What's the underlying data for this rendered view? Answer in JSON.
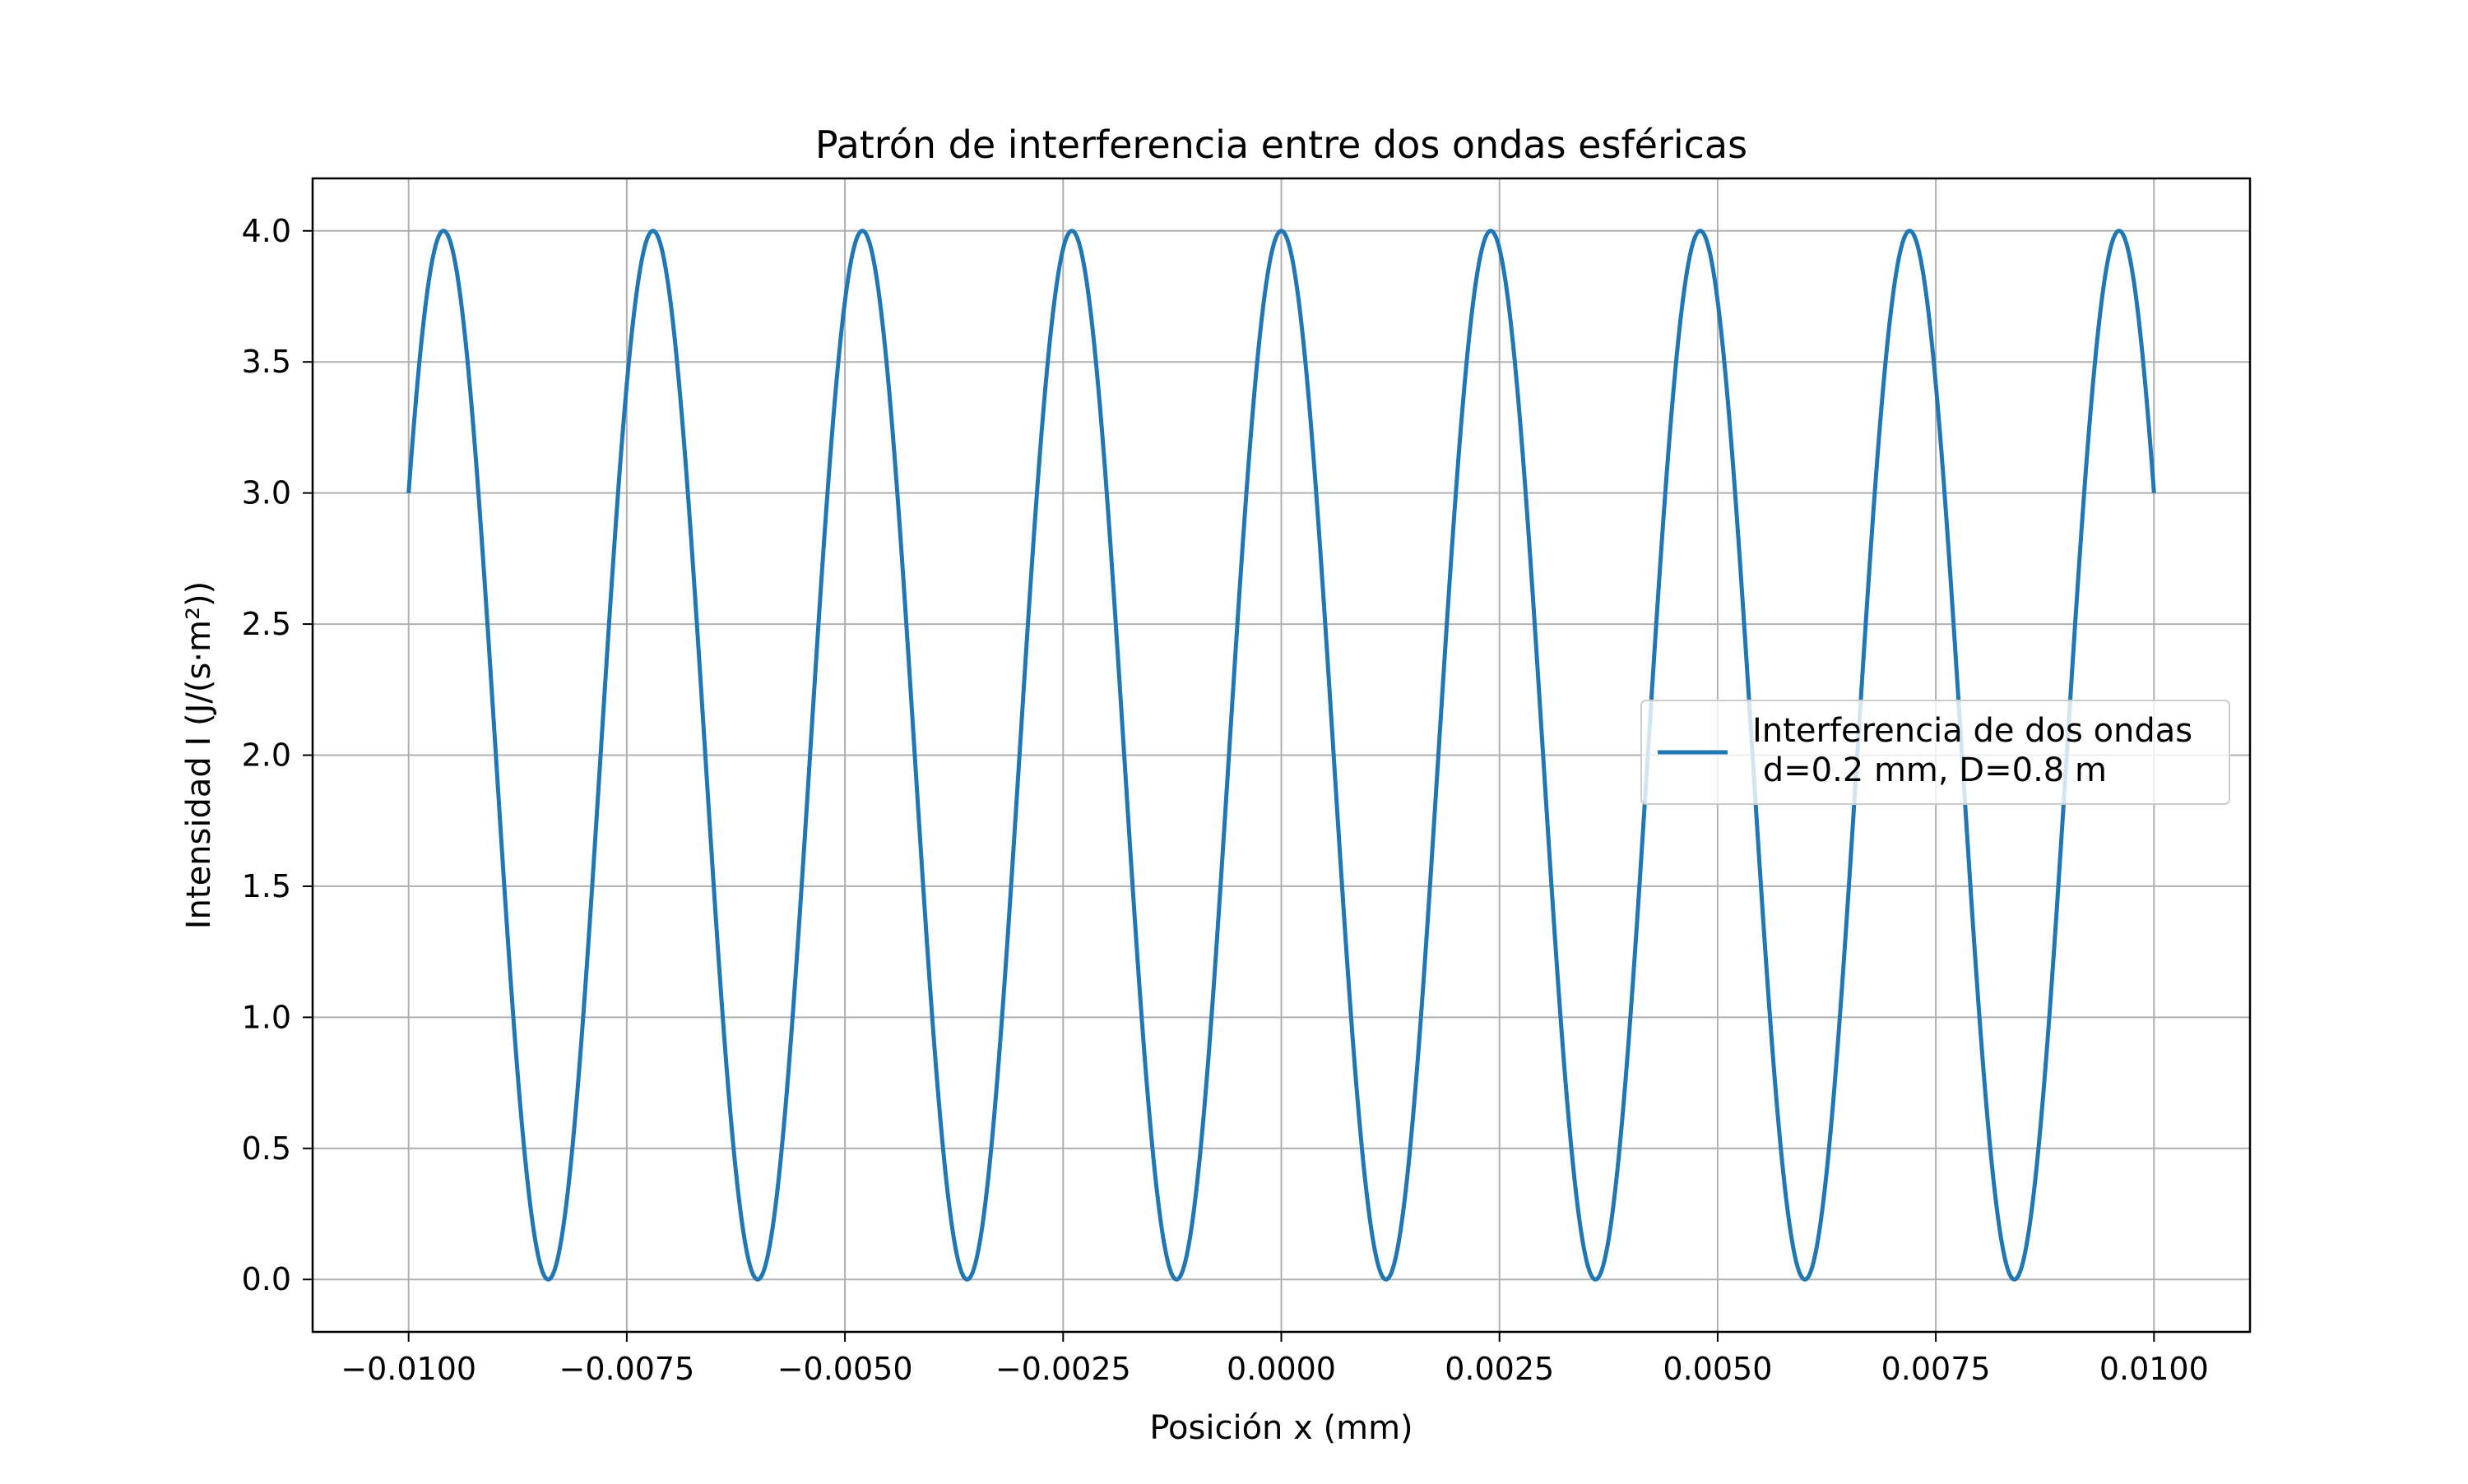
{
  "chart_data": {
    "type": "line",
    "title": "Patrón de interferencia entre dos ondas esféricas",
    "xlabel": "Posición x (mm)",
    "ylabel": "Intensidad I (J/(s·m²))",
    "xlim": [
      -0.0111,
      0.0111
    ],
    "ylim": [
      -0.2,
      4.2
    ],
    "xticks": [
      -0.01,
      -0.0075,
      -0.005,
      -0.0025,
      0.0,
      0.0025,
      0.005,
      0.0075,
      0.01
    ],
    "xtick_labels": [
      "−0.0100",
      "−0.0075",
      "−0.0050",
      "−0.0025",
      "0.0000",
      "0.0025",
      "0.0050",
      "0.0075",
      "0.0100"
    ],
    "yticks": [
      0.0,
      0.5,
      1.0,
      1.5,
      2.0,
      2.5,
      3.0,
      3.5,
      4.0
    ],
    "ytick_labels": [
      "0.0",
      "0.5",
      "1.0",
      "1.5",
      "2.0",
      "2.5",
      "3.0",
      "3.5",
      "4.0"
    ],
    "grid": true,
    "legend_position": "right",
    "series": [
      {
        "name": "Interferencia de dos ondas\n d=0.2 mm, D=0.8 m",
        "color": "#1f77b4",
        "x_range": [
          -0.01,
          0.01
        ],
        "peak_value": 4.0,
        "fringe_spacing": 0.0024,
        "maxima_x": [
          -0.0096,
          -0.0072,
          -0.0048,
          -0.0024,
          0.0,
          0.0024,
          0.0048,
          0.0072,
          0.0096
        ],
        "minima_x": [
          -0.0084,
          -0.006,
          -0.0036,
          -0.0012,
          0.0012,
          0.0036,
          0.006,
          0.0084
        ],
        "endpoint_values": [
          3.0,
          3.0
        ]
      }
    ]
  }
}
